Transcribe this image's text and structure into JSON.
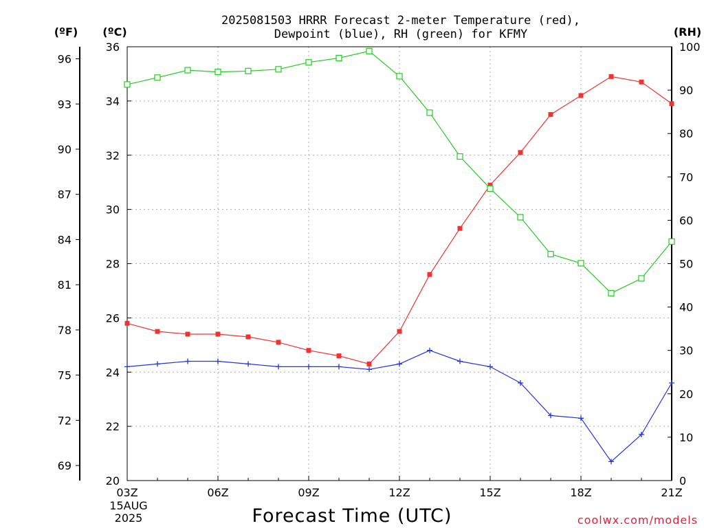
{
  "chart_data": {
    "type": "line",
    "title_lines": [
      "2025081503 HRRR Forecast 2-meter Temperature (red),",
      "Dewpoint (blue), RH (green) for KFMY"
    ],
    "xlabel": "Forecast Time (UTC)",
    "x": [
      "03Z",
      "04Z",
      "05Z",
      "06Z",
      "07Z",
      "08Z",
      "09Z",
      "10Z",
      "11Z",
      "12Z",
      "13Z",
      "14Z",
      "15Z",
      "16Z",
      "17Z",
      "18Z",
      "19Z",
      "20Z",
      "21Z"
    ],
    "x_tick_labels": [
      "03Z",
      "06Z",
      "09Z",
      "12Z",
      "15Z",
      "18Z",
      "21Z"
    ],
    "x_sub_labels": [
      "15AUG",
      "2025"
    ],
    "axes": {
      "fahrenheit": {
        "label": "(ºF)",
        "ticks": [
          69,
          72,
          75,
          78,
          81,
          84,
          87,
          90,
          93,
          96
        ]
      },
      "celsius": {
        "label": "(ºC)",
        "ticks": [
          20,
          22,
          24,
          26,
          28,
          30,
          32,
          34,
          36
        ],
        "ylim": [
          20,
          36
        ]
      },
      "rh": {
        "label": "(RH)",
        "ticks": [
          0,
          10,
          20,
          30,
          40,
          50,
          60,
          70,
          80,
          90,
          100
        ],
        "ylim": [
          0,
          100
        ]
      }
    },
    "grid": true,
    "series": [
      {
        "color": "#ee3333",
        "marker": "filled-square",
        "axis": "celsius",
        "values": [
          25.8,
          25.5,
          25.4,
          25.4,
          25.3,
          25.1,
          24.8,
          24.6,
          24.3,
          25.5,
          27.6,
          29.3,
          30.9,
          32.1,
          33.5,
          34.2,
          34.9,
          34.7,
          33.9
        ]
      },
      {
        "color": "#2233dd",
        "marker": "plus",
        "axis": "celsius",
        "values": [
          24.2,
          24.3,
          24.4,
          24.4,
          24.3,
          24.2,
          24.2,
          24.2,
          24.1,
          24.3,
          24.8,
          24.4,
          24.2,
          23.6,
          22.4,
          22.3,
          20.7,
          21.7,
          23.6
        ]
      },
      {
        "color": "#22cc22",
        "marker": "open-square",
        "axis": "rh",
        "values": [
          91.3,
          92.9,
          94.6,
          94.2,
          94.4,
          94.8,
          96.4,
          97.4,
          99.0,
          93.2,
          84.8,
          74.7,
          67.3,
          60.7,
          52.2,
          50.1,
          43.2,
          46.6,
          55.1
        ]
      }
    ]
  },
  "credit": "coolwx.com/models"
}
